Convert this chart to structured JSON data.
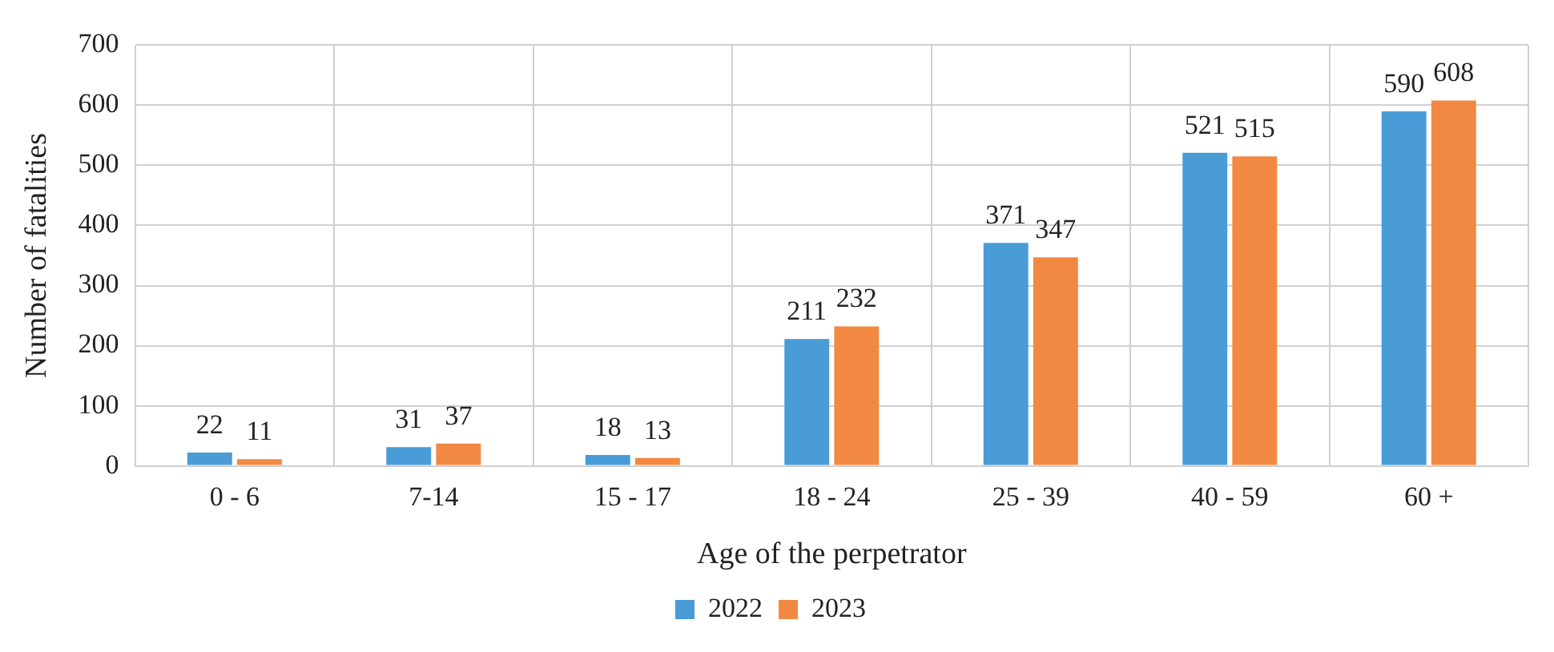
{
  "chart_data": {
    "type": "bar",
    "xlabel": "Age of the perpetrator",
    "ylabel": "Number of fatalities",
    "categories": [
      "0 - 6",
      "7-14",
      "15 - 17",
      "18 - 24",
      "25 - 39",
      "40 - 59",
      "60 +"
    ],
    "series": [
      {
        "name": "2022",
        "color": "#4a9cd6",
        "values": [
          22,
          31,
          18,
          211,
          371,
          521,
          590
        ]
      },
      {
        "name": "2023",
        "color": "#f28943",
        "values": [
          11,
          37,
          13,
          232,
          347,
          515,
          608
        ]
      }
    ],
    "ylim": [
      0,
      700
    ],
    "yticks": [
      0,
      100,
      200,
      300,
      400,
      500,
      600,
      700
    ],
    "grid": true,
    "legend": "bottom",
    "data_labels": true
  }
}
